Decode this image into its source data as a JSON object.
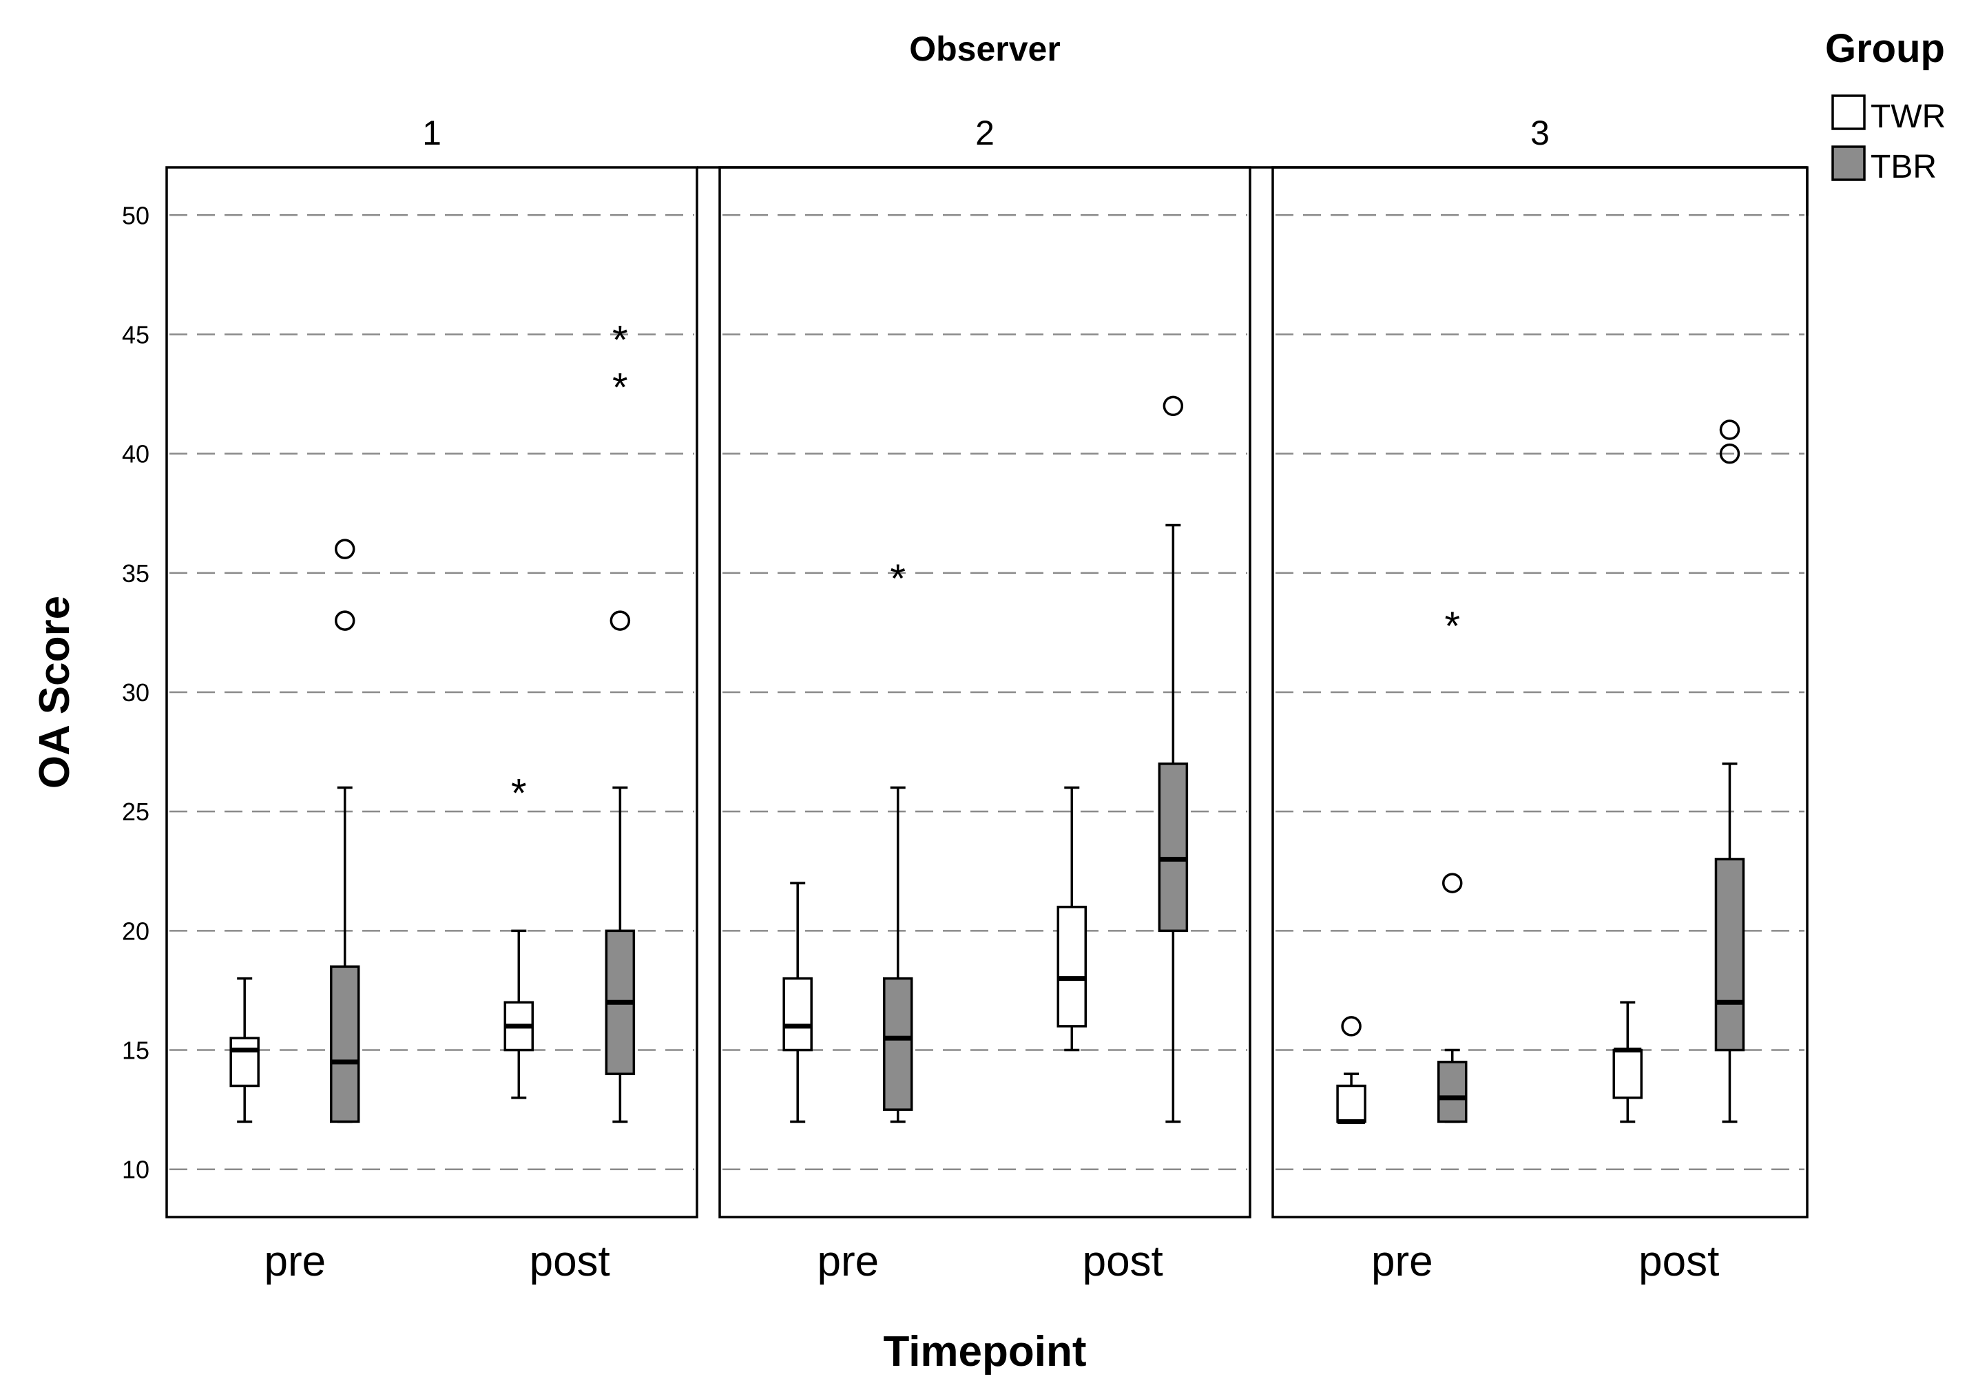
{
  "chart_data": {
    "type": "boxplot",
    "facet_title": "Observer",
    "xlabel": "Timepoint",
    "ylabel": "OA Score",
    "ylim": [
      8,
      52
    ],
    "yticks": [
      10,
      15,
      20,
      25,
      30,
      35,
      40,
      45,
      50
    ],
    "grid": true,
    "grid_style": "dashed",
    "legend": {
      "title": "Group",
      "position": "top-right",
      "entries": [
        {
          "label": "TWR",
          "color": "#ffffff"
        },
        {
          "label": "TBR",
          "color": "#8c8c8c"
        }
      ]
    },
    "timepoints": [
      "pre",
      "post"
    ],
    "panels": [
      {
        "label": "1",
        "boxes": [
          {
            "timepoint": "pre",
            "group": "TWR",
            "min": 12,
            "q1": 13.5,
            "median": 15,
            "q3": 15.5,
            "max": 18,
            "outliers": [],
            "extremes": []
          },
          {
            "timepoint": "pre",
            "group": "TBR",
            "min": 12,
            "q1": 12,
            "median": 14.5,
            "q3": 18.5,
            "max": 26,
            "outliers": [
              33,
              36
            ],
            "extremes": []
          },
          {
            "timepoint": "post",
            "group": "TWR",
            "min": 13,
            "q1": 15,
            "median": 16,
            "q3": 17,
            "max": 20,
            "outliers": [],
            "extremes": [
              26
            ]
          },
          {
            "timepoint": "post",
            "group": "TBR",
            "min": 12,
            "q1": 14,
            "median": 17,
            "q3": 20,
            "max": 26,
            "outliers": [
              33
            ],
            "extremes": [
              43,
              45
            ]
          }
        ]
      },
      {
        "label": "2",
        "boxes": [
          {
            "timepoint": "pre",
            "group": "TWR",
            "min": 12,
            "q1": 15,
            "median": 16,
            "q3": 18,
            "max": 22,
            "outliers": [],
            "extremes": []
          },
          {
            "timepoint": "pre",
            "group": "TBR",
            "min": 12,
            "q1": 12.5,
            "median": 15.5,
            "q3": 18,
            "max": 26,
            "outliers": [],
            "extremes": [
              35
            ]
          },
          {
            "timepoint": "post",
            "group": "TWR",
            "min": 15,
            "q1": 16,
            "median": 18,
            "q3": 21,
            "max": 26,
            "outliers": [],
            "extremes": []
          },
          {
            "timepoint": "post",
            "group": "TBR",
            "min": 12,
            "q1": 20,
            "median": 23,
            "q3": 27,
            "max": 37,
            "outliers": [
              42
            ],
            "extremes": []
          }
        ]
      },
      {
        "label": "3",
        "boxes": [
          {
            "timepoint": "pre",
            "group": "TWR",
            "min": 12,
            "q1": 12,
            "median": 12,
            "q3": 13.5,
            "max": 14,
            "outliers": [
              16
            ],
            "extremes": []
          },
          {
            "timepoint": "pre",
            "group": "TBR",
            "min": 12,
            "q1": 12,
            "median": 13,
            "q3": 14.5,
            "max": 15,
            "outliers": [
              22
            ],
            "extremes": [
              33
            ]
          },
          {
            "timepoint": "post",
            "group": "TWR",
            "min": 12,
            "q1": 13,
            "median": 15,
            "q3": 15,
            "max": 17,
            "outliers": [],
            "extremes": []
          },
          {
            "timepoint": "post",
            "group": "TBR",
            "min": 12,
            "q1": 15,
            "median": 17,
            "q3": 23,
            "max": 27,
            "outliers": [
              40,
              41
            ],
            "extremes": []
          }
        ]
      }
    ]
  }
}
